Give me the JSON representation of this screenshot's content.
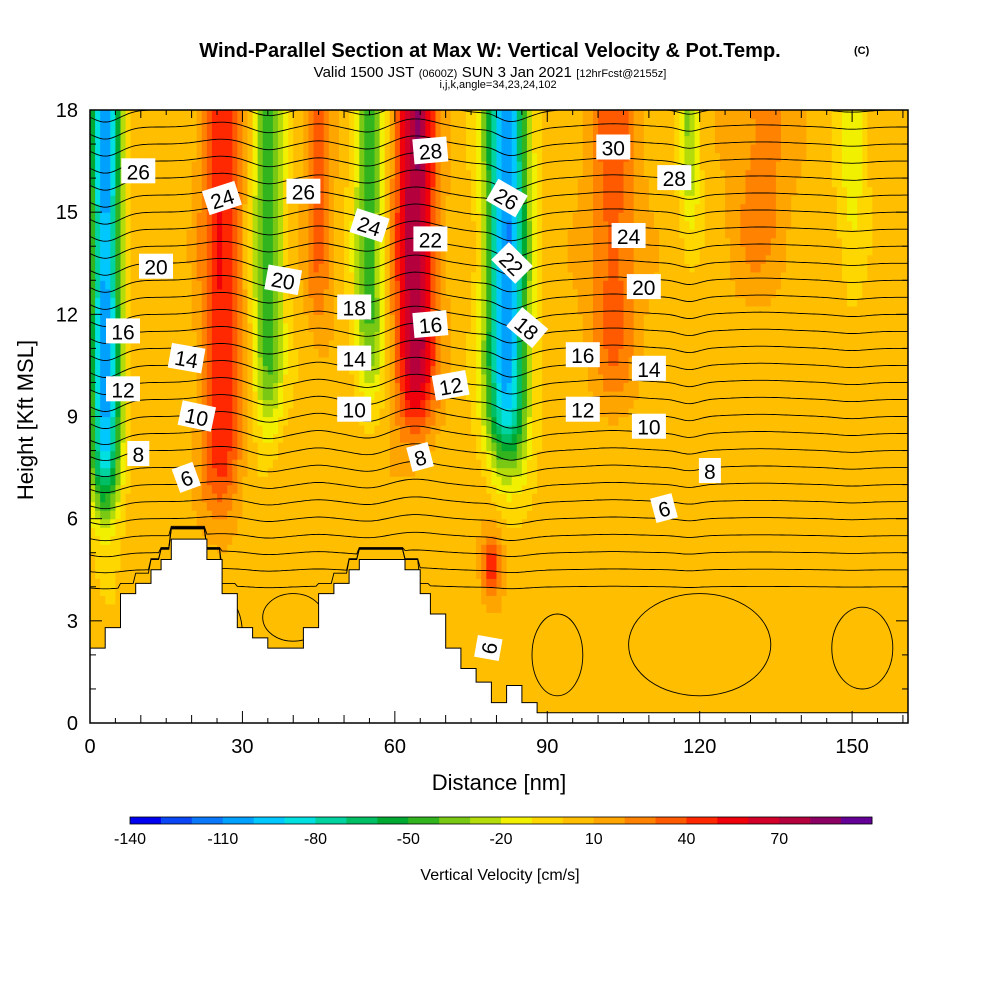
{
  "chart_data": {
    "type": "heatmap",
    "title": "Wind-Parallel Section at Max W: Vertical Velocity & Pot.Temp.",
    "title_mark": "(C)",
    "subtitle": {
      "valid": "Valid 1500 JST",
      "utc": "(0600Z)",
      "date": "SUN 3 Jan 2021",
      "fcst": "[12hrFcst@2155z]",
      "indices": "i,j,k,angle=34,23,24,102"
    },
    "xlabel": "Distance [nm]",
    "ylabel": "Height [Kft MSL]",
    "xlim": [
      0,
      161
    ],
    "ylim": [
      0,
      18
    ],
    "x_ticks": [
      "0",
      "30",
      "60",
      "90",
      "120",
      "150"
    ],
    "y_ticks": [
      "0",
      "3",
      "6",
      "9",
      "12",
      "15",
      "18"
    ],
    "colorbar": {
      "label": "Vertical Velocity [cm/s]",
      "tick_labels": [
        "-140",
        "-110",
        "-80",
        "-50",
        "-20",
        "10",
        "40",
        "70"
      ],
      "levels": [
        -140,
        -130,
        -120,
        -110,
        -100,
        -90,
        -80,
        -70,
        -60,
        -50,
        -40,
        -30,
        -20,
        -10,
        0,
        10,
        20,
        30,
        40,
        50,
        60,
        70,
        80,
        90
      ],
      "colors": [
        "#0000f0",
        "#0a46f5",
        "#0a78fa",
        "#00a0ff",
        "#00c8ff",
        "#00e0e0",
        "#00d2a0",
        "#00be64",
        "#00aa32",
        "#32b41e",
        "#78c814",
        "#b4dc0a",
        "#f0f000",
        "#ffd700",
        "#ffbe00",
        "#ffa500",
        "#ff8200",
        "#ff5a00",
        "#ff2800",
        "#f0000a",
        "#d20028",
        "#b4003c",
        "#8c0064",
        "#640096"
      ]
    },
    "terrain_kft": [
      [
        0,
        2.2
      ],
      [
        3,
        2.2
      ],
      [
        3,
        2.8
      ],
      [
        6,
        2.8
      ],
      [
        6,
        3.8
      ],
      [
        9,
        3.8
      ],
      [
        9,
        4.1
      ],
      [
        12,
        4.1
      ],
      [
        12,
        4.5
      ],
      [
        14,
        4.5
      ],
      [
        14,
        4.8
      ],
      [
        16,
        4.8
      ],
      [
        16,
        5.4
      ],
      [
        23,
        5.4
      ],
      [
        23,
        4.8
      ],
      [
        26,
        4.8
      ],
      [
        26,
        3.8
      ],
      [
        29,
        3.8
      ],
      [
        29,
        2.8
      ],
      [
        32,
        2.8
      ],
      [
        32,
        2.5
      ],
      [
        35,
        2.5
      ],
      [
        35,
        2.2
      ],
      [
        42,
        2.2
      ],
      [
        42,
        2.8
      ],
      [
        45,
        2.8
      ],
      [
        45,
        3.8
      ],
      [
        48,
        3.8
      ],
      [
        48,
        4.1
      ],
      [
        51,
        4.1
      ],
      [
        51,
        4.5
      ],
      [
        53,
        4.5
      ],
      [
        53,
        4.8
      ],
      [
        62,
        4.8
      ],
      [
        62,
        4.5
      ],
      [
        65,
        4.5
      ],
      [
        65,
        3.8
      ],
      [
        67,
        3.8
      ],
      [
        67,
        3.2
      ],
      [
        70,
        3.2
      ],
      [
        70,
        2.2
      ],
      [
        73,
        2.2
      ],
      [
        73,
        1.6
      ],
      [
        76,
        1.6
      ],
      [
        76,
        1.2
      ],
      [
        79,
        1.2
      ],
      [
        79,
        0.6
      ],
      [
        82,
        0.6
      ],
      [
        82,
        1.1
      ],
      [
        85,
        1.1
      ],
      [
        85,
        0.6
      ],
      [
        88,
        0.6
      ],
      [
        88,
        0.3
      ],
      [
        161,
        0.3
      ]
    ],
    "isentrope_labels": [
      {
        "text": "26",
        "x": 9.5,
        "y": 16.2,
        "angle": 0
      },
      {
        "text": "20",
        "x": 13,
        "y": 13.4,
        "angle": 0
      },
      {
        "text": "16",
        "x": 6.5,
        "y": 11.5,
        "angle": 0
      },
      {
        "text": "12",
        "x": 6.5,
        "y": 9.8,
        "angle": 0
      },
      {
        "text": "8",
        "x": 9.5,
        "y": 7.9,
        "angle": 0
      },
      {
        "text": "6",
        "x": 19,
        "y": 7.2,
        "angle": -20
      },
      {
        "text": "24",
        "x": 26,
        "y": 15.4,
        "angle": -18
      },
      {
        "text": "14",
        "x": 19,
        "y": 10.7,
        "angle": 10
      },
      {
        "text": "10",
        "x": 21,
        "y": 9.0,
        "angle": 12
      },
      {
        "text": "26",
        "x": 42,
        "y": 15.6,
        "angle": 0
      },
      {
        "text": "20",
        "x": 38,
        "y": 13.0,
        "angle": 10
      },
      {
        "text": "24",
        "x": 55,
        "y": 14.6,
        "angle": 18
      },
      {
        "text": "18",
        "x": 52,
        "y": 12.2,
        "angle": 0
      },
      {
        "text": "14",
        "x": 52,
        "y": 10.7,
        "angle": 0
      },
      {
        "text": "10",
        "x": 52,
        "y": 9.2,
        "angle": 0
      },
      {
        "text": "28",
        "x": 67,
        "y": 16.8,
        "angle": -5
      },
      {
        "text": "22",
        "x": 67,
        "y": 14.2,
        "angle": 0
      },
      {
        "text": "16",
        "x": 67,
        "y": 11.7,
        "angle": -5
      },
      {
        "text": "12",
        "x": 71,
        "y": 9.9,
        "angle": -10
      },
      {
        "text": "8",
        "x": 65,
        "y": 7.8,
        "angle": -15
      },
      {
        "text": "26",
        "x": 82,
        "y": 15.4,
        "angle": 30
      },
      {
        "text": "22",
        "x": 83,
        "y": 13.5,
        "angle": 45
      },
      {
        "text": "18",
        "x": 86,
        "y": 11.6,
        "angle": 40
      },
      {
        "text": "6",
        "x": 78.5,
        "y": 2.2,
        "angle": -80
      },
      {
        "text": "30",
        "x": 103,
        "y": 16.9,
        "angle": 0
      },
      {
        "text": "28",
        "x": 115,
        "y": 16.0,
        "angle": 0
      },
      {
        "text": "24",
        "x": 106,
        "y": 14.3,
        "angle": 0
      },
      {
        "text": "20",
        "x": 109,
        "y": 12.8,
        "angle": 0
      },
      {
        "text": "16",
        "x": 97,
        "y": 10.8,
        "angle": 0
      },
      {
        "text": "14",
        "x": 110,
        "y": 10.4,
        "angle": 0
      },
      {
        "text": "12",
        "x": 97,
        "y": 9.2,
        "angle": 0
      },
      {
        "text": "10",
        "x": 110,
        "y": 8.7,
        "angle": 0
      },
      {
        "text": "8",
        "x": 122,
        "y": 7.4,
        "angle": 0
      },
      {
        "text": "6",
        "x": 113,
        "y": 6.3,
        "angle": -15
      }
    ],
    "vertical_velocity_features": [
      {
        "sign": "down",
        "x_center": 3,
        "width_nm": 3,
        "y_bottom_kft": 6.5,
        "peak_cm_s": -110
      },
      {
        "sign": "up",
        "x_center": 26,
        "width_nm": 4,
        "y_bottom_kft": 6.5,
        "peak_cm_s": 45
      },
      {
        "sign": "down",
        "x_center": 35,
        "width_nm": 3,
        "y_bottom_kft": 9,
        "peak_cm_s": -55
      },
      {
        "sign": "up",
        "x_center": 45,
        "width_nm": 2.5,
        "y_bottom_kft": 12,
        "peak_cm_s": 30
      },
      {
        "sign": "down",
        "x_center": 55,
        "width_nm": 3,
        "y_bottom_kft": 10,
        "peak_cm_s": -50
      },
      {
        "sign": "up",
        "x_center": 64,
        "width_nm": 4,
        "y_bottom_kft": 9,
        "peak_cm_s": 75
      },
      {
        "sign": "down",
        "x_center": 82,
        "width_nm": 4,
        "y_bottom_kft": 8,
        "peak_cm_s": -115
      },
      {
        "sign": "up",
        "x_center": 79,
        "width_nm": 2,
        "y_center_kft": 4.6,
        "peak_cm_s": 45
      },
      {
        "sign": "up",
        "x_center": 103,
        "width_nm": 5,
        "y_bottom_kft": 10,
        "peak_cm_s": 30
      },
      {
        "sign": "down",
        "x_center": 118,
        "width_nm": 2,
        "y_bottom_kft": 15,
        "peak_cm_s": -40
      },
      {
        "sign": "up",
        "x_center": 132,
        "width_nm": 6,
        "y_bottom_kft": 13,
        "peak_cm_s": 20
      },
      {
        "sign": "down",
        "x_center": 150,
        "width_nm": 3,
        "y_bottom_kft": 13,
        "peak_cm_s": -20
      }
    ]
  }
}
